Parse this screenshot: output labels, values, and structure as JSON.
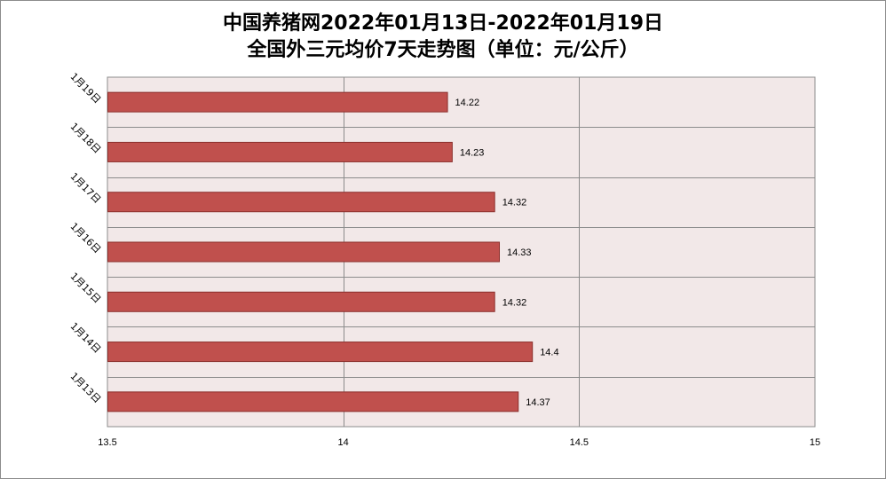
{
  "chart_data": {
    "type": "bar",
    "orientation": "horizontal",
    "title": "中国养猪网2022年01月13日-2022年01月19日",
    "subtitle": "全国外三元均价7天走势图（单位：元/公斤）",
    "categories": [
      "1月19日",
      "1月18日",
      "1月17日",
      "1月16日",
      "1月15日",
      "1月14日",
      "1月13日"
    ],
    "values": [
      14.22,
      14.23,
      14.32,
      14.33,
      14.32,
      14.4,
      14.37
    ],
    "value_labels": [
      "14.22",
      "14.23",
      "14.32",
      "14.33",
      "14.32",
      "14.4",
      "14.37"
    ],
    "xlim": [
      13.5,
      15
    ],
    "xticks": [
      "13.5",
      "14",
      "14.5",
      "15"
    ],
    "xticks_values": [
      13.5,
      14,
      14.5,
      15
    ],
    "grid": true,
    "legend": "none",
    "colors": {
      "bar_fill": "#c0504d",
      "bar_stroke": "#8b2f2c",
      "plot_bg": "#f2e8e8",
      "grid": "#8c8c8c"
    }
  }
}
